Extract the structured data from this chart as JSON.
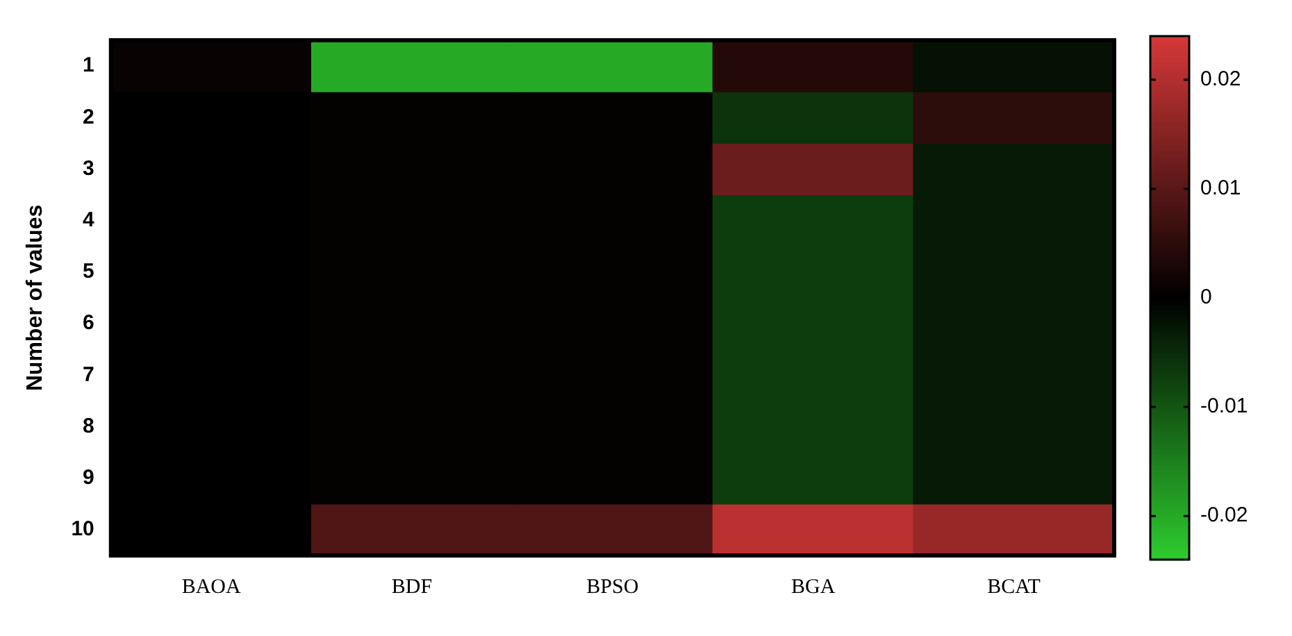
{
  "chart_data": {
    "type": "heatmap",
    "ylabel": "Number of values",
    "categories": [
      "BAOA",
      "BDF",
      "BPSO",
      "BGA",
      "BCAT"
    ],
    "y_categories": [
      "1",
      "2",
      "3",
      "4",
      "5",
      "6",
      "7",
      "8",
      "9",
      "10"
    ],
    "cells": [
      [
        0.001,
        -0.02,
        -0.02,
        0.004,
        -0.002
      ],
      [
        0,
        0.0005,
        0.0005,
        -0.006,
        0.005
      ],
      [
        0,
        0.0005,
        0.0005,
        0.012,
        -0.003
      ],
      [
        0,
        0.0005,
        0.0005,
        -0.007,
        -0.003
      ],
      [
        0,
        0.0005,
        0.0005,
        -0.007,
        -0.003
      ],
      [
        0,
        0.0005,
        0.0005,
        -0.007,
        -0.003
      ],
      [
        0,
        0.0005,
        0.0005,
        -0.007,
        -0.003
      ],
      [
        0,
        0.0005,
        0.0005,
        -0.007,
        -0.003
      ],
      [
        0,
        0.0005,
        0.0005,
        -0.007,
        -0.003
      ],
      [
        0,
        0.009,
        0.009,
        0.021,
        0.017
      ]
    ],
    "clim": [
      -0.024,
      0.024
    ],
    "cticks": [
      -0.02,
      -0.01,
      0,
      0.01,
      0.02
    ]
  }
}
